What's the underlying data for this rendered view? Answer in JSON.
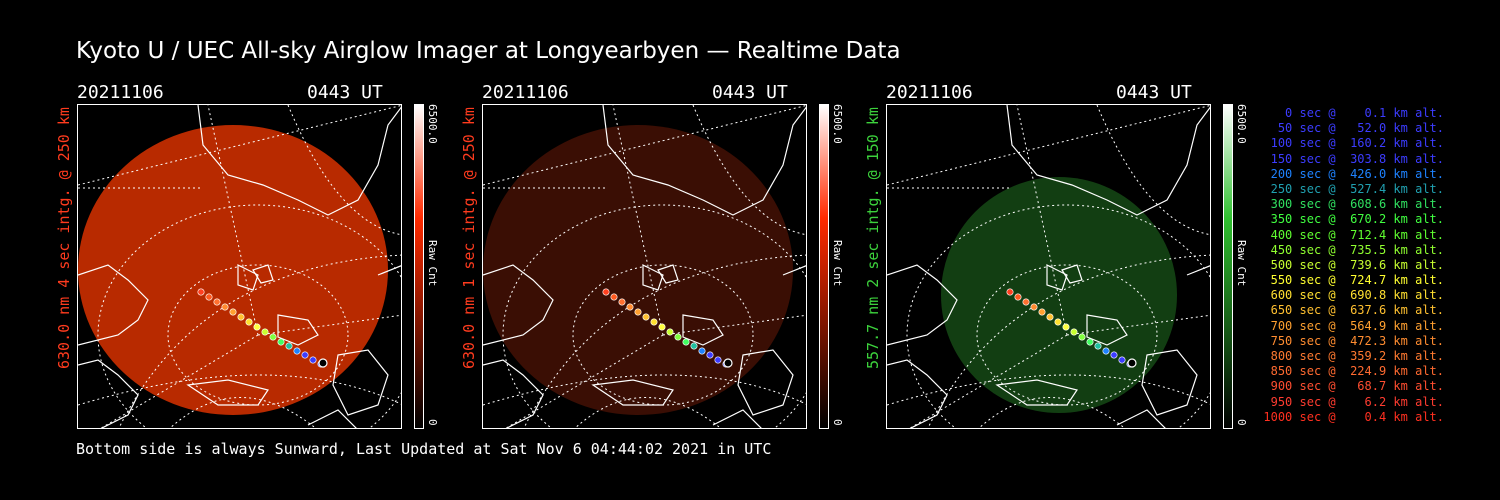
{
  "title": "Kyoto U / UEC All-sky Airglow Imager at Longyearbyen — Realtime Data",
  "footer": "Bottom side is always Sunward, Last Updated at Sat Nov  6 04:44:02 2021 in UTC",
  "panels": [
    {
      "date": "20211106",
      "time": "0443 UT",
      "label": "630.0 nm 4 sec intg. @ 250 km",
      "label_color": "#ff3b1e",
      "cbar_max": "6500.0",
      "cbar_unit": "Raw Cnt",
      "image_color": "#b82a00",
      "cbar_top": "#ff2a00"
    },
    {
      "date": "20211106",
      "time": "0443 UT",
      "label": "630.0 nm 1 sec intg. @ 250 km",
      "label_color": "#ff3b1e",
      "cbar_max": "6500.0",
      "cbar_unit": "Raw Cnt",
      "image_color": "#3a0e04",
      "cbar_top": "#ff2a00"
    },
    {
      "date": "20211106",
      "time": "0443 UT",
      "label": "557.7 nm 2 sec intg. @ 150 km",
      "label_color": "#3cd23c",
      "cbar_max": "6500.0",
      "cbar_unit": "Raw Cnt",
      "image_color": "#123e12",
      "cbar_top": "#30c030"
    }
  ],
  "legend": [
    {
      "text": "   0 sec @    0.1 km alt.",
      "color": "#3c3cff"
    },
    {
      "text": "  50 sec @   52.0 km alt.",
      "color": "#3c3cff"
    },
    {
      "text": " 100 sec @  160.2 km alt.",
      "color": "#3c3cff"
    },
    {
      "text": " 150 sec @  303.8 km alt.",
      "color": "#3c3cff"
    },
    {
      "text": " 200 sec @  426.0 km alt.",
      "color": "#1e82ff"
    },
    {
      "text": " 250 sec @  527.4 km alt.",
      "color": "#20a0b0"
    },
    {
      "text": " 300 sec @  608.6 km alt.",
      "color": "#30e060"
    },
    {
      "text": " 350 sec @  670.2 km alt.",
      "color": "#40ff40"
    },
    {
      "text": " 400 sec @  712.4 km alt.",
      "color": "#60ff30"
    },
    {
      "text": " 450 sec @  735.5 km alt.",
      "color": "#90ff30"
    },
    {
      "text": " 500 sec @  739.6 km alt.",
      "color": "#c8ff30"
    },
    {
      "text": " 550 sec @  724.7 km alt.",
      "color": "#ffff30"
    },
    {
      "text": " 600 sec @  690.8 km alt.",
      "color": "#ffe030"
    },
    {
      "text": " 650 sec @  637.6 km alt.",
      "color": "#ffc030"
    },
    {
      "text": " 700 sec @  564.9 km alt.",
      "color": "#ffa030"
    },
    {
      "text": " 750 sec @  472.3 km alt.",
      "color": "#ff8c30"
    },
    {
      "text": " 800 sec @  359.2 km alt.",
      "color": "#ff7a30"
    },
    {
      "text": " 850 sec @  224.9 km alt.",
      "color": "#ff6a30"
    },
    {
      "text": " 900 sec @   68.7 km alt.",
      "color": "#ff4e30"
    },
    {
      "text": " 950 sec @    6.2 km alt.",
      "color": "#ff3c30"
    },
    {
      "text": "1000 sec @    0.4 km alt.",
      "color": "#ff3020"
    }
  ]
}
